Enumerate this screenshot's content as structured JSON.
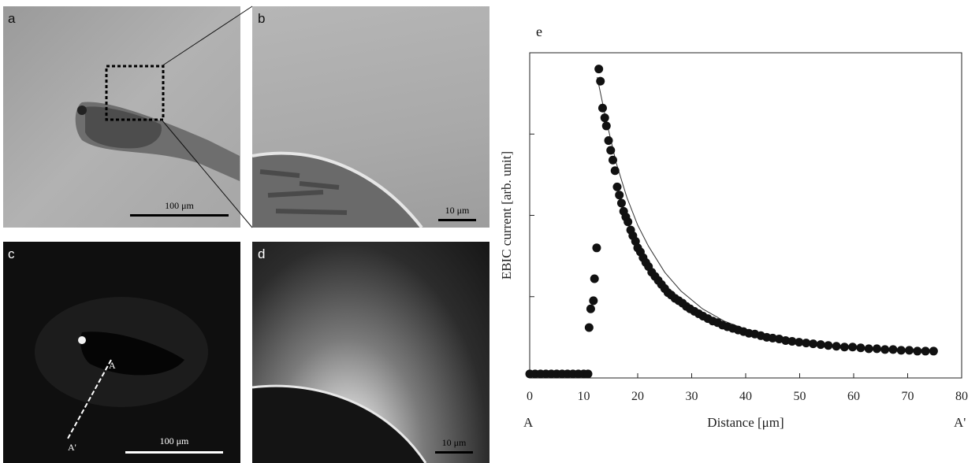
{
  "panels": {
    "a": {
      "label": "a",
      "scale_text": "100 μm"
    },
    "b": {
      "label": "b",
      "scale_text": "10 μm"
    },
    "c": {
      "label": "c",
      "scale_text": "100 μm",
      "marker_start": "A",
      "marker_end": "A'"
    },
    "d": {
      "label": "d",
      "scale_text": "10 μm"
    },
    "e": {
      "label": "e"
    }
  },
  "chart_data": {
    "type": "scatter",
    "xlabel": "Distance [μm]",
    "ylabel": "EBIC current [arb. unit]",
    "xlim": [
      0,
      80
    ],
    "ylim": [
      0,
      4
    ],
    "x_ticks": [
      "0",
      "10",
      "20",
      "30",
      "40",
      "50",
      "60",
      "70",
      "80"
    ],
    "x_end_labels": [
      "A",
      "A'"
    ],
    "grid": false,
    "series": [
      {
        "kind": "points",
        "x": [
          0,
          1,
          2,
          3,
          4,
          5,
          6,
          7,
          8,
          9,
          10,
          10.8,
          11,
          11.3,
          11.8,
          12,
          12.4,
          12.8,
          13.1,
          13.5,
          13.9,
          14.2,
          14.6,
          15,
          15.4,
          15.8,
          16.2,
          16.6,
          17,
          17.4,
          17.8,
          18.2,
          18.7,
          19.1,
          19.6,
          20,
          20.5,
          21,
          21.5,
          22,
          22.6,
          23.2,
          23.8,
          24.4,
          25,
          25.6,
          26.2,
          26.9,
          27.6,
          28.3,
          29,
          29.7,
          30.5,
          31.3,
          32.1,
          33,
          33.9,
          34.8,
          35.7,
          36.6,
          37.6,
          38.6,
          39.6,
          40.6,
          41.7,
          42.8,
          43.9,
          45,
          46.2,
          47.4,
          48.6,
          49.9,
          51.2,
          52.5,
          53.9,
          55.3,
          56.8,
          58.3,
          59.8,
          61.3,
          62.8,
          64.3,
          65.8,
          67.3,
          68.8,
          70.3,
          71.8,
          73.3,
          74.8
        ],
        "y": [
          0.05,
          0.05,
          0.05,
          0.05,
          0.05,
          0.05,
          0.05,
          0.05,
          0.05,
          0.05,
          0.05,
          0.05,
          0.62,
          0.85,
          0.95,
          1.22,
          1.6,
          3.8,
          3.65,
          3.32,
          3.2,
          3.1,
          2.92,
          2.8,
          2.68,
          2.55,
          2.35,
          2.25,
          2.15,
          2.05,
          1.98,
          1.92,
          1.82,
          1.75,
          1.68,
          1.6,
          1.55,
          1.48,
          1.42,
          1.37,
          1.3,
          1.25,
          1.2,
          1.15,
          1.1,
          1.05,
          1.02,
          0.98,
          0.95,
          0.92,
          0.88,
          0.85,
          0.82,
          0.79,
          0.76,
          0.73,
          0.7,
          0.68,
          0.65,
          0.63,
          0.61,
          0.59,
          0.57,
          0.55,
          0.54,
          0.52,
          0.5,
          0.49,
          0.48,
          0.46,
          0.45,
          0.44,
          0.43,
          0.42,
          0.41,
          0.4,
          0.39,
          0.38,
          0.38,
          0.37,
          0.36,
          0.36,
          0.35,
          0.35,
          0.34,
          0.34,
          0.33,
          0.33,
          0.33
        ]
      },
      {
        "kind": "fit",
        "x": [
          12.5,
          14,
          16,
          18,
          20,
          22,
          25,
          28,
          32,
          36,
          40,
          45,
          50,
          55,
          60,
          65,
          70,
          75
        ],
        "y": [
          3.7,
          3.22,
          2.65,
          2.22,
          1.88,
          1.62,
          1.3,
          1.07,
          0.85,
          0.7,
          0.6,
          0.51,
          0.45,
          0.41,
          0.38,
          0.36,
          0.35,
          0.34
        ]
      }
    ]
  }
}
